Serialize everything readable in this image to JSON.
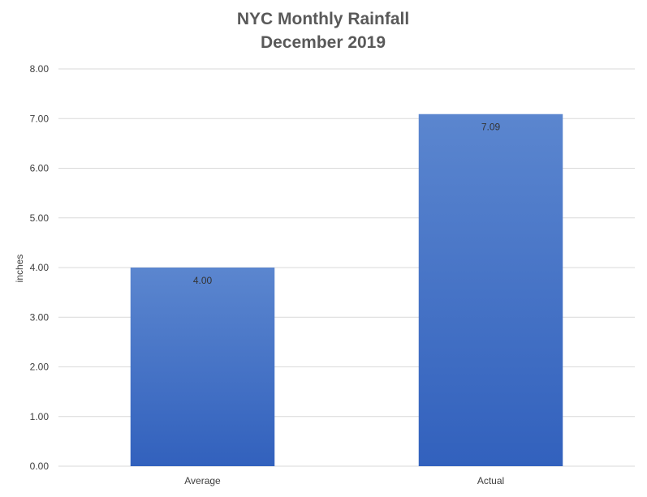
{
  "chart_data": {
    "type": "bar",
    "title": "NYC Monthly Rainfall",
    "subtitle": "December 2019",
    "xlabel": "",
    "ylabel": "inches",
    "categories": [
      "Average",
      "Actual"
    ],
    "values": [
      4.0,
      7.09
    ],
    "data_labels": [
      "4.00",
      "7.09"
    ],
    "ylim": [
      0,
      8
    ],
    "yticks": [
      0,
      1,
      2,
      3,
      4,
      5,
      6,
      7,
      8
    ],
    "ytick_labels": [
      "0.00",
      "1.00",
      "2.00",
      "3.00",
      "4.00",
      "5.00",
      "6.00",
      "7.00",
      "8.00"
    ],
    "grid": true,
    "legend": "none",
    "colors": {
      "bar_top": "#5b86cf",
      "bar_bottom": "#3261bd",
      "grid": "#d9d9d9",
      "text": "#404040",
      "title": "#595959"
    }
  }
}
